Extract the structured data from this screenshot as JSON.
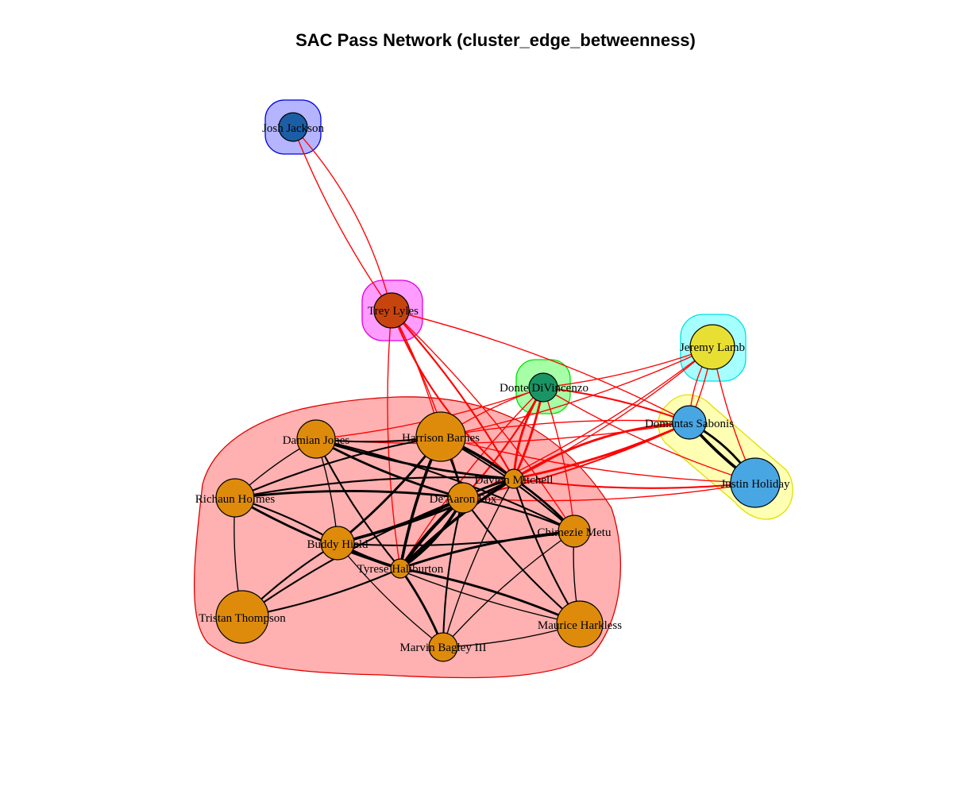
{
  "title": "SAC Pass Network (cluster_edge_betweenness)",
  "colors": {
    "intra_edge": "#000000",
    "inter_edge": "#ff0000",
    "node_stroke": "#000000"
  },
  "clusters": [
    {
      "id": "c-josh",
      "fill": "#b4b4ff",
      "stroke": "#0000e0",
      "members": [
        "Josh Jackson"
      ]
    },
    {
      "id": "c-trey",
      "fill": "#ff9cff",
      "stroke": "#e000e0",
      "members": [
        "Trey Lyles"
      ]
    },
    {
      "id": "c-donte",
      "fill": "#a6ffa6",
      "stroke": "#00e000",
      "members": [
        "Donte DiVincenzo"
      ]
    },
    {
      "id": "c-jeremy",
      "fill": "#a6ffff",
      "stroke": "#00e0e0",
      "members": [
        "Jeremy Lamb"
      ]
    },
    {
      "id": "c-sabonis",
      "fill": "#ffffb4",
      "stroke": "#e0e000",
      "members": [
        "Domantas Sabonis",
        "Justin Holiday"
      ]
    },
    {
      "id": "c-main",
      "fill": "#ffb0b0",
      "stroke": "#e00000",
      "members": [
        "Harrison Barnes",
        "Damian Jones",
        "Richaun Holmes",
        "De'Aaron Fox",
        "Davion Mitchell",
        "Chimezie Metu",
        "Buddy Hield",
        "Tyrese Haliburton",
        "Tristan Thompson",
        "Marvin Bagley III",
        "Maurice Harkless"
      ]
    }
  ],
  "nodes": [
    {
      "name": "Josh Jackson",
      "label": "Josh Jackson",
      "color": "#1b5ea6",
      "size": 18
    },
    {
      "name": "Trey Lyles",
      "label": "Trey Lyles",
      "color": "#c8440f",
      "size": 22
    },
    {
      "name": "Donte DiVincenzo",
      "label": "Donte DiVincenzo",
      "color": "#1a9465",
      "size": 18
    },
    {
      "name": "Jeremy Lamb",
      "label": "Jeremy Lamb",
      "color": "#e8df33",
      "size": 28
    },
    {
      "name": "Domantas Sabonis",
      "label": "Domantas Sabonis",
      "color": "#48a6e3",
      "size": 21
    },
    {
      "name": "Justin Holiday",
      "label": "Justin Holiday",
      "color": "#48a6e3",
      "size": 31
    },
    {
      "name": "Harrison Barnes",
      "label": "Harrison Barnes",
      "color": "#de8b0c",
      "size": 31
    },
    {
      "name": "Damian Jones",
      "label": "Damian Jones",
      "color": "#de8b0c",
      "size": 24
    },
    {
      "name": "Richaun Holmes",
      "label": "Richaun Holmes",
      "color": "#de8b0c",
      "size": 24
    },
    {
      "name": "De'Aaron Fox",
      "label": "De'Aaron Fox",
      "color": "#de8b0c",
      "size": 19
    },
    {
      "name": "Davion Mitchell",
      "label": "Davion Mitchell",
      "color": "#de8b0c",
      "size": 12
    },
    {
      "name": "Chimezie Metu",
      "label": "Chimezie Metu",
      "color": "#de8b0c",
      "size": 20
    },
    {
      "name": "Buddy Hield",
      "label": "Buddy Hield",
      "color": "#de8b0c",
      "size": 21
    },
    {
      "name": "Tyrese Haliburton",
      "label": "Tyrese Haliburton",
      "color": "#de8b0c",
      "size": 12
    },
    {
      "name": "Tristan Thompson",
      "label": "Tristan Thompson",
      "color": "#de8b0c",
      "size": 33
    },
    {
      "name": "Marvin Bagley III",
      "label": "Marvin Bagley III",
      "color": "#de8b0c",
      "size": 18
    },
    {
      "name": "Maurice Harkless",
      "label": "Maurice Harkless",
      "color": "#de8b0c",
      "size": 29
    }
  ],
  "edges": [
    {
      "from": "Josh Jackson",
      "to": "Trey Lyles",
      "weight": 1
    },
    {
      "from": "Trey Lyles",
      "to": "Josh Jackson",
      "weight": 1
    },
    {
      "from": "Trey Lyles",
      "to": "Davion Mitchell",
      "weight": 2
    },
    {
      "from": "Trey Lyles",
      "to": "Davion Mitchell",
      "weight": 2
    },
    {
      "from": "Trey Lyles",
      "to": "Harrison Barnes",
      "weight": 1
    },
    {
      "from": "Trey Lyles",
      "to": "De'Aaron Fox",
      "weight": 1
    },
    {
      "from": "Trey Lyles",
      "to": "Tyrese Haliburton",
      "weight": 1
    },
    {
      "from": "Trey Lyles",
      "to": "Domantas Sabonis",
      "weight": 1
    },
    {
      "from": "Trey Lyles",
      "to": "Chimezie Metu",
      "weight": 1
    },
    {
      "from": "Donte DiVincenzo",
      "to": "Davion Mitchell",
      "weight": 3
    },
    {
      "from": "Donte DiVincenzo",
      "to": "Davion Mitchell",
      "weight": 3
    },
    {
      "from": "Donte DiVincenzo",
      "to": "De'Aaron Fox",
      "weight": 2
    },
    {
      "from": "Donte DiVincenzo",
      "to": "Harrison Barnes",
      "weight": 1
    },
    {
      "from": "Donte DiVincenzo",
      "to": "Damian Jones",
      "weight": 1
    },
    {
      "from": "Donte DiVincenzo",
      "to": "Jeremy Lamb",
      "weight": 1
    },
    {
      "from": "Donte DiVincenzo",
      "to": "Domantas Sabonis",
      "weight": 2
    },
    {
      "from": "Donte DiVincenzo",
      "to": "Justin Holiday",
      "weight": 1
    },
    {
      "from": "Donte DiVincenzo",
      "to": "Chimezie Metu",
      "weight": 1
    },
    {
      "from": "Donte DiVincenzo",
      "to": "Tyrese Haliburton",
      "weight": 1
    },
    {
      "from": "Jeremy Lamb",
      "to": "Domantas Sabonis",
      "weight": 1
    },
    {
      "from": "Jeremy Lamb",
      "to": "Domantas Sabonis",
      "weight": 1
    },
    {
      "from": "Jeremy Lamb",
      "to": "Davion Mitchell",
      "weight": 1
    },
    {
      "from": "Jeremy Lamb",
      "to": "Justin Holiday",
      "weight": 1
    },
    {
      "from": "Jeremy Lamb",
      "to": "Harrison Barnes",
      "weight": 1
    },
    {
      "from": "Jeremy Lamb",
      "to": "De'Aaron Fox",
      "weight": 1
    },
    {
      "from": "Domantas Sabonis",
      "to": "Justin Holiday",
      "weight": 4
    },
    {
      "from": "Domantas Sabonis",
      "to": "Justin Holiday",
      "weight": 3
    },
    {
      "from": "Domantas Sabonis",
      "to": "Davion Mitchell",
      "weight": 3
    },
    {
      "from": "Domantas Sabonis",
      "to": "Davion Mitchell",
      "weight": 3
    },
    {
      "from": "Domantas Sabonis",
      "to": "De'Aaron Fox",
      "weight": 2
    },
    {
      "from": "Domantas Sabonis",
      "to": "Harrison Barnes",
      "weight": 1
    },
    {
      "from": "Domantas Sabonis",
      "to": "Damian Jones",
      "weight": 1
    },
    {
      "from": "Justin Holiday",
      "to": "Davion Mitchell",
      "weight": 2
    },
    {
      "from": "Justin Holiday",
      "to": "De'Aaron Fox",
      "weight": 1
    },
    {
      "from": "Justin Holiday",
      "to": "Harrison Barnes",
      "weight": 1
    },
    {
      "from": "Harrison Barnes",
      "to": "Davion Mitchell",
      "weight": 4
    },
    {
      "from": "Harrison Barnes",
      "to": "De'Aaron Fox",
      "weight": 3
    },
    {
      "from": "Harrison Barnes",
      "to": "Tyrese Haliburton",
      "weight": 4
    },
    {
      "from": "Harrison Barnes",
      "to": "Buddy Hield",
      "weight": 3
    },
    {
      "from": "Harrison Barnes",
      "to": "Damian Jones",
      "weight": 2
    },
    {
      "from": "Harrison Barnes",
      "to": "Richaun Holmes",
      "weight": 2
    },
    {
      "from": "Harrison Barnes",
      "to": "Chimezie Metu",
      "weight": 2
    },
    {
      "from": "Damian Jones",
      "to": "De'Aaron Fox",
      "weight": 3
    },
    {
      "from": "Damian Jones",
      "to": "Davion Mitchell",
      "weight": 3
    },
    {
      "from": "Damian Jones",
      "to": "Tyrese Haliburton",
      "weight": 2
    },
    {
      "from": "Damian Jones",
      "to": "Buddy Hield",
      "weight": 1
    },
    {
      "from": "Damian Jones",
      "to": "Richaun Holmes",
      "weight": 1
    },
    {
      "from": "Damian Jones",
      "to": "Chimezie Metu",
      "weight": 2
    },
    {
      "from": "Richaun Holmes",
      "to": "De'Aaron Fox",
      "weight": 3
    },
    {
      "from": "Richaun Holmes",
      "to": "Davion Mitchell",
      "weight": 2
    },
    {
      "from": "Richaun Holmes",
      "to": "Tyrese Haliburton",
      "weight": 3
    },
    {
      "from": "Richaun Holmes",
      "to": "Buddy Hield",
      "weight": 2
    },
    {
      "from": "De'Aaron Fox",
      "to": "Tyrese Haliburton",
      "weight": 5
    },
    {
      "from": "De'Aaron Fox",
      "to": "Tyrese Haliburton",
      "weight": 4
    },
    {
      "from": "De'Aaron Fox",
      "to": "Buddy Hield",
      "weight": 4
    },
    {
      "from": "De'Aaron Fox",
      "to": "Davion Mitchell",
      "weight": 3
    },
    {
      "from": "De'Aaron Fox",
      "to": "Chimezie Metu",
      "weight": 2
    },
    {
      "from": "De'Aaron Fox",
      "to": "Marvin Bagley III",
      "weight": 2
    },
    {
      "from": "De'Aaron Fox",
      "to": "Maurice Harkless",
      "weight": 2
    },
    {
      "from": "De'Aaron Fox",
      "to": "Tristan Thompson",
      "weight": 2
    },
    {
      "from": "Davion Mitchell",
      "to": "Tyrese Haliburton",
      "weight": 4
    },
    {
      "from": "Davion Mitchell",
      "to": "Buddy Hield",
      "weight": 3
    },
    {
      "from": "Davion Mitchell",
      "to": "Chimezie Metu",
      "weight": 3
    },
    {
      "from": "Davion Mitchell",
      "to": "Marvin Bagley III",
      "weight": 1
    },
    {
      "from": "Davion Mitchell",
      "to": "Maurice Harkless",
      "weight": 2
    },
    {
      "from": "Tyrese Haliburton",
      "to": "Buddy Hield",
      "weight": 4
    },
    {
      "from": "Tyrese Haliburton",
      "to": "Chimezie Metu",
      "weight": 3
    },
    {
      "from": "Tyrese Haliburton",
      "to": "Marvin Bagley III",
      "weight": 3
    },
    {
      "from": "Tyrese Haliburton",
      "to": "Maurice Harkless",
      "weight": 3
    },
    {
      "from": "Tyrese Haliburton",
      "to": "Tristan Thompson",
      "weight": 2
    },
    {
      "from": "Buddy Hield",
      "to": "Tristan Thompson",
      "weight": 2
    },
    {
      "from": "Buddy Hield",
      "to": "Chimezie Metu",
      "weight": 2
    },
    {
      "from": "Buddy Hield",
      "to": "Marvin Bagley III",
      "weight": 1
    },
    {
      "from": "Buddy Hield",
      "to": "Maurice Harkless",
      "weight": 1
    },
    {
      "from": "Chimezie Metu",
      "to": "Maurice Harkless",
      "weight": 1
    },
    {
      "from": "Chimezie Metu",
      "to": "Marvin Bagley III",
      "weight": 1
    },
    {
      "from": "Tristan Thompson",
      "to": "Richaun Holmes",
      "weight": 1
    },
    {
      "from": "Marvin Bagley III",
      "to": "Maurice Harkless",
      "weight": 1
    }
  ]
}
